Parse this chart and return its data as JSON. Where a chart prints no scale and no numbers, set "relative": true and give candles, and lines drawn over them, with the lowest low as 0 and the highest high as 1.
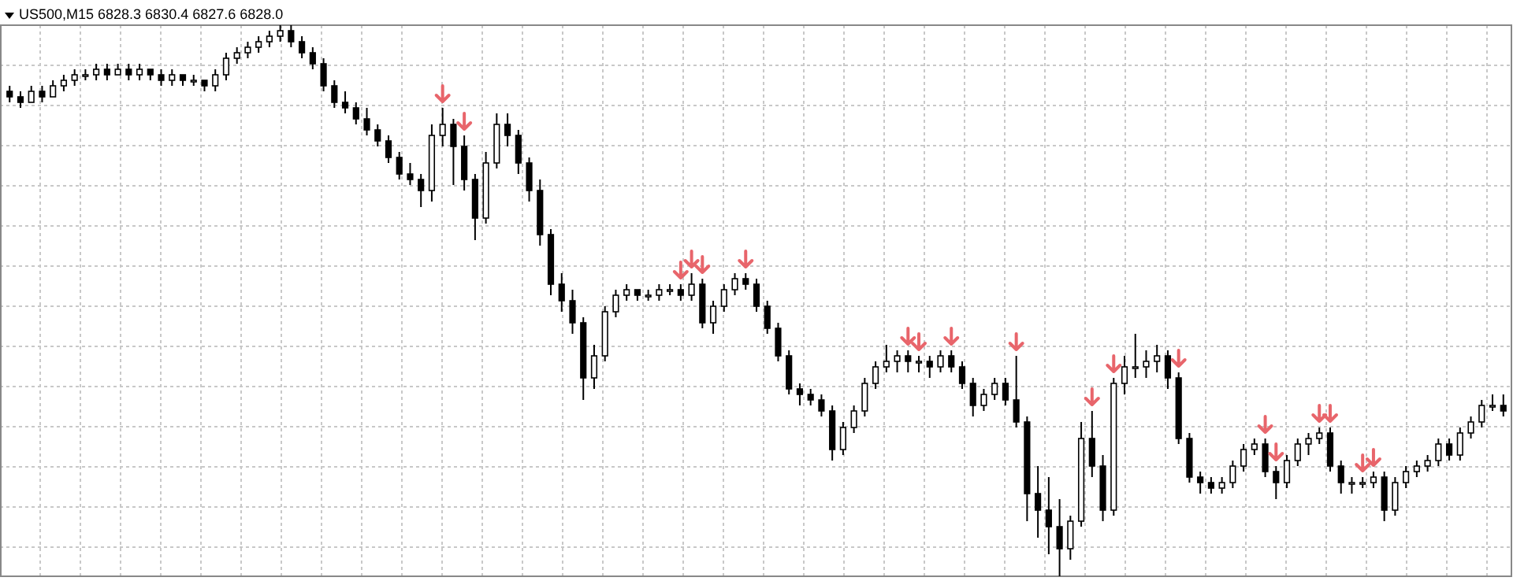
{
  "chart_data": {
    "type": "candlestick",
    "title": "US500,M15  6828.3 6830.4 6827.6 6828.0",
    "relative": true,
    "grid": true,
    "categories": [
      null,
      null,
      null,
      null,
      null,
      null,
      null,
      null,
      null,
      null,
      null,
      null,
      null,
      null,
      null,
      null,
      null,
      null,
      null,
      null,
      null,
      null,
      null,
      null,
      null,
      null,
      null,
      null,
      null,
      null,
      null,
      null,
      null,
      null,
      null,
      null,
      null,
      null,
      null,
      null,
      null,
      null,
      null,
      null,
      null,
      null,
      null,
      null,
      null,
      null,
      null,
      null,
      null,
      null,
      null,
      null,
      null,
      null,
      null,
      null,
      null,
      null,
      null,
      null,
      null,
      null,
      null,
      null,
      null,
      null,
      null,
      null,
      null,
      null,
      null,
      null,
      null,
      null,
      null,
      null,
      null,
      null,
      null,
      null,
      null,
      null,
      null,
      null,
      null,
      null,
      null,
      null,
      null,
      null,
      null,
      null,
      null,
      null,
      null,
      null,
      null,
      null,
      null,
      null,
      null,
      null,
      null,
      null,
      null,
      null,
      null,
      null,
      null,
      null,
      null,
      null,
      null,
      null,
      null,
      null,
      null,
      null,
      null,
      null,
      null,
      null,
      null,
      null,
      null,
      null,
      null,
      null,
      null,
      null,
      null,
      null,
      null,
      null,
      null
    ],
    "ohlc": [
      [
        0.88,
        0.89,
        0.86,
        0.87
      ],
      [
        0.87,
        0.88,
        0.85,
        0.86
      ],
      [
        0.86,
        0.89,
        0.86,
        0.88
      ],
      [
        0.88,
        0.89,
        0.86,
        0.87
      ],
      [
        0.87,
        0.9,
        0.87,
        0.89
      ],
      [
        0.89,
        0.91,
        0.88,
        0.9
      ],
      [
        0.9,
        0.92,
        0.89,
        0.91
      ],
      [
        0.91,
        0.92,
        0.9,
        0.91
      ],
      [
        0.91,
        0.93,
        0.9,
        0.92
      ],
      [
        0.92,
        0.93,
        0.9,
        0.91
      ],
      [
        0.91,
        0.93,
        0.91,
        0.92
      ],
      [
        0.92,
        0.93,
        0.9,
        0.91
      ],
      [
        0.91,
        0.93,
        0.9,
        0.92
      ],
      [
        0.92,
        0.92,
        0.9,
        0.91
      ],
      [
        0.91,
        0.92,
        0.89,
        0.9
      ],
      [
        0.9,
        0.92,
        0.89,
        0.91
      ],
      [
        0.91,
        0.91,
        0.89,
        0.9
      ],
      [
        0.9,
        0.91,
        0.89,
        0.9
      ],
      [
        0.9,
        0.9,
        0.88,
        0.89
      ],
      [
        0.89,
        0.92,
        0.88,
        0.91
      ],
      [
        0.91,
        0.95,
        0.9,
        0.94
      ],
      [
        0.94,
        0.96,
        0.93,
        0.95
      ],
      [
        0.95,
        0.97,
        0.94,
        0.96
      ],
      [
        0.96,
        0.98,
        0.95,
        0.97
      ],
      [
        0.97,
        0.99,
        0.96,
        0.98
      ],
      [
        0.98,
        1,
        0.97,
        0.99
      ],
      [
        0.99,
        1,
        0.96,
        0.97
      ],
      [
        0.97,
        0.98,
        0.94,
        0.95
      ],
      [
        0.95,
        0.96,
        0.92,
        0.93
      ],
      [
        0.93,
        0.94,
        0.88,
        0.89
      ],
      [
        0.89,
        0.9,
        0.85,
        0.86
      ],
      [
        0.86,
        0.88,
        0.84,
        0.85
      ],
      [
        0.85,
        0.86,
        0.82,
        0.83
      ],
      [
        0.83,
        0.85,
        0.8,
        0.81
      ],
      [
        0.81,
        0.82,
        0.78,
        0.79
      ],
      [
        0.79,
        0.8,
        0.75,
        0.76
      ],
      [
        0.76,
        0.77,
        0.72,
        0.73
      ],
      [
        0.73,
        0.75,
        0.71,
        0.72
      ],
      [
        0.72,
        0.73,
        0.67,
        0.7
      ],
      [
        0.7,
        0.82,
        0.68,
        0.8
      ],
      [
        0.8,
        0.85,
        0.78,
        0.82
      ],
      [
        0.82,
        0.83,
        0.71,
        0.78
      ],
      [
        0.78,
        0.8,
        0.7,
        0.72
      ],
      [
        0.72,
        0.73,
        0.61,
        0.65
      ],
      [
        0.65,
        0.77,
        0.64,
        0.75
      ],
      [
        0.75,
        0.84,
        0.74,
        0.82
      ],
      [
        0.82,
        0.84,
        0.78,
        0.8
      ],
      [
        0.8,
        0.81,
        0.73,
        0.75
      ],
      [
        0.75,
        0.76,
        0.68,
        0.7
      ],
      [
        0.7,
        0.72,
        0.6,
        0.62
      ],
      [
        0.62,
        0.63,
        0.51,
        0.53
      ],
      [
        0.53,
        0.55,
        0.48,
        0.5
      ],
      [
        0.5,
        0.52,
        0.44,
        0.46
      ],
      [
        0.46,
        0.47,
        0.32,
        0.36
      ],
      [
        0.36,
        0.42,
        0.34,
        0.4
      ],
      [
        0.4,
        0.49,
        0.39,
        0.48
      ],
      [
        0.48,
        0.52,
        0.47,
        0.51
      ],
      [
        0.51,
        0.53,
        0.5,
        0.52
      ],
      [
        0.52,
        0.52,
        0.5,
        0.51
      ],
      [
        0.51,
        0.52,
        0.5,
        0.51
      ],
      [
        0.51,
        0.53,
        0.5,
        0.52
      ],
      [
        0.52,
        0.53,
        0.51,
        0.52
      ],
      [
        0.52,
        0.53,
        0.5,
        0.51
      ],
      [
        0.51,
        0.55,
        0.5,
        0.53
      ],
      [
        0.53,
        0.54,
        0.45,
        0.46
      ],
      [
        0.46,
        0.5,
        0.44,
        0.49
      ],
      [
        0.49,
        0.53,
        0.48,
        0.52
      ],
      [
        0.52,
        0.55,
        0.51,
        0.54
      ],
      [
        0.54,
        0.55,
        0.52,
        0.53
      ],
      [
        0.53,
        0.54,
        0.48,
        0.49
      ],
      [
        0.49,
        0.5,
        0.44,
        0.45
      ],
      [
        0.45,
        0.46,
        0.39,
        0.4
      ],
      [
        0.4,
        0.41,
        0.33,
        0.34
      ],
      [
        0.34,
        0.35,
        0.31,
        0.33
      ],
      [
        0.33,
        0.34,
        0.31,
        0.32
      ],
      [
        0.32,
        0.33,
        0.29,
        0.3
      ],
      [
        0.3,
        0.31,
        0.21,
        0.23
      ],
      [
        0.23,
        0.28,
        0.22,
        0.27
      ],
      [
        0.27,
        0.31,
        0.26,
        0.3
      ],
      [
        0.3,
        0.36,
        0.29,
        0.35
      ],
      [
        0.35,
        0.39,
        0.34,
        0.38
      ],
      [
        0.38,
        0.42,
        0.37,
        0.39
      ],
      [
        0.39,
        0.41,
        0.37,
        0.4
      ],
      [
        0.4,
        0.41,
        0.37,
        0.39
      ],
      [
        0.39,
        0.4,
        0.37,
        0.39
      ],
      [
        0.39,
        0.4,
        0.36,
        0.38
      ],
      [
        0.38,
        0.41,
        0.37,
        0.4
      ],
      [
        0.4,
        0.41,
        0.37,
        0.38
      ],
      [
        0.38,
        0.39,
        0.34,
        0.35
      ],
      [
        0.35,
        0.36,
        0.29,
        0.31
      ],
      [
        0.31,
        0.34,
        0.3,
        0.33
      ],
      [
        0.33,
        0.36,
        0.32,
        0.35
      ],
      [
        0.35,
        0.36,
        0.31,
        0.32
      ],
      [
        0.32,
        0.4,
        0.27,
        0.28
      ],
      [
        0.28,
        0.29,
        0.1,
        0.15
      ],
      [
        0.15,
        0.2,
        0.07,
        0.12
      ],
      [
        0.12,
        0.18,
        0.04,
        0.09
      ],
      [
        0.09,
        0.14,
        0,
        0.05
      ],
      [
        0.05,
        0.11,
        0.03,
        0.1
      ],
      [
        0.1,
        0.28,
        0.09,
        0.25
      ],
      [
        0.25,
        0.3,
        0.18,
        0.2
      ],
      [
        0.2,
        0.22,
        0.1,
        0.12
      ],
      [
        0.12,
        0.36,
        0.11,
        0.35
      ],
      [
        0.35,
        0.4,
        0.33,
        0.38
      ],
      [
        0.38,
        0.44,
        0.36,
        0.38
      ],
      [
        0.38,
        0.41,
        0.36,
        0.39
      ],
      [
        0.39,
        0.42,
        0.37,
        0.4
      ],
      [
        0.4,
        0.41,
        0.34,
        0.36
      ],
      [
        0.36,
        0.37,
        0.24,
        0.25
      ],
      [
        0.25,
        0.26,
        0.17,
        0.18
      ],
      [
        0.18,
        0.19,
        0.15,
        0.17
      ],
      [
        0.17,
        0.18,
        0.15,
        0.16
      ],
      [
        0.16,
        0.18,
        0.15,
        0.17
      ],
      [
        0.17,
        0.21,
        0.16,
        0.2
      ],
      [
        0.2,
        0.24,
        0.19,
        0.23
      ],
      [
        0.23,
        0.25,
        0.22,
        0.24
      ],
      [
        0.24,
        0.25,
        0.18,
        0.19
      ],
      [
        0.19,
        0.2,
        0.14,
        0.17
      ],
      [
        0.17,
        0.22,
        0.16,
        0.21
      ],
      [
        0.21,
        0.25,
        0.2,
        0.24
      ],
      [
        0.24,
        0.26,
        0.22,
        0.25
      ],
      [
        0.25,
        0.27,
        0.24,
        0.26
      ],
      [
        0.26,
        0.27,
        0.19,
        0.2
      ],
      [
        0.2,
        0.21,
        0.15,
        0.17
      ],
      [
        0.17,
        0.18,
        0.15,
        0.17
      ],
      [
        0.17,
        0.18,
        0.16,
        0.17
      ],
      [
        0.17,
        0.19,
        0.16,
        0.18
      ],
      [
        0.18,
        0.19,
        0.1,
        0.12
      ],
      [
        0.12,
        0.18,
        0.11,
        0.17
      ],
      [
        0.17,
        0.2,
        0.16,
        0.19
      ],
      [
        0.19,
        0.21,
        0.18,
        0.2
      ],
      [
        0.2,
        0.22,
        0.19,
        0.21
      ],
      [
        0.21,
        0.25,
        0.2,
        0.24
      ],
      [
        0.24,
        0.25,
        0.21,
        0.22
      ],
      [
        0.22,
        0.27,
        0.21,
        0.26
      ],
      [
        0.26,
        0.29,
        0.25,
        0.28
      ],
      [
        0.28,
        0.32,
        0.27,
        0.31
      ],
      [
        0.31,
        0.33,
        0.3,
        0.31
      ],
      [
        0.31,
        0.33,
        0.29,
        0.3
      ]
    ]
  }
}
